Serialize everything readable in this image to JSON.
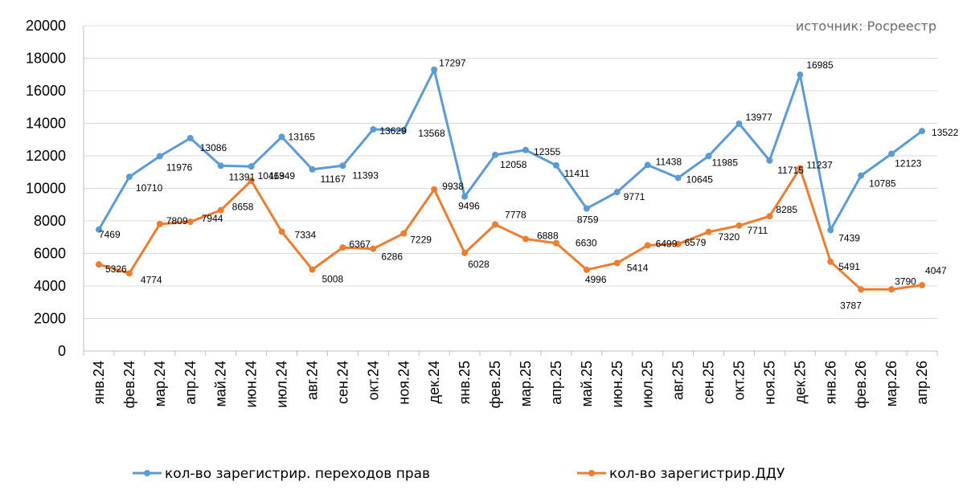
{
  "chart_data": {
    "type": "line",
    "source_label": "источник: Росреестр",
    "categories": [
      "янв.24",
      "фев.24",
      "мар.24",
      "апр.24",
      "май.24",
      "июн.24",
      "июл.24",
      "авг.24",
      "сен.24",
      "окт.24",
      "ноя.24",
      "дек.24",
      "янв.25",
      "фев.25",
      "мар.25",
      "апр.25",
      "май.25",
      "июн.25",
      "июл.25",
      "авг.25",
      "сен.25",
      "окт.25",
      "ноя.25",
      "дек.25",
      "янв.26",
      "фев.26",
      "мар.26",
      "апр.26"
    ],
    "ylim": [
      0,
      20000
    ],
    "yticks": [
      "0",
      "2000",
      "4000",
      "6000",
      "8000",
      "10000",
      "12000",
      "14000",
      "16000",
      "18000",
      "20000"
    ],
    "grid": "horizontal",
    "legend_position": "bottom",
    "series": [
      {
        "name": "кол-во зарегистрир. переходов прав",
        "color": "#5b9bd5",
        "values": [
          7469,
          10710,
          11976,
          13086,
          11391,
          11349,
          13165,
          11167,
          11393,
          13629,
          13568,
          17297,
          9496,
          12058,
          12355,
          11411,
          8759,
          9771,
          11438,
          10645,
          11985,
          13977,
          11715,
          16985,
          7439,
          10785,
          12123,
          13522
        ],
        "labels": [
          "7469",
          "10710",
          "11976",
          "13086",
          "11391",
          "11349",
          "13165",
          "11167",
          "11393",
          "13629",
          "13568",
          "17297",
          "9496",
          "12058",
          "12355",
          "11411",
          "8759",
          "9771",
          "11438",
          "10645",
          "11985",
          "13977",
          "11715",
          "16985",
          "7439",
          "10785",
          "12123",
          "13522"
        ]
      },
      {
        "name": "кол-во зарегистрир.ДДУ",
        "color": "#ed7d31",
        "values": [
          5326,
          4774,
          7809,
          7944,
          8658,
          10469,
          7334,
          5008,
          6367,
          6286,
          7229,
          9938,
          6028,
          7778,
          6888,
          6630,
          4996,
          5414,
          6499,
          6579,
          7320,
          7711,
          8285,
          11237,
          5491,
          3787,
          3790,
          4047
        ],
        "labels": [
          "5326",
          "4774",
          "7809",
          "7944",
          "8658",
          "10469",
          "7334",
          "5008",
          "6367",
          "6286",
          "7229",
          "9938",
          "6028",
          "7778",
          "6888",
          "6630",
          "4996",
          "5414",
          "6499",
          "6579",
          "7320",
          "7711",
          "8285",
          "11237",
          "5491",
          "3787",
          "3790",
          "4047"
        ]
      }
    ]
  }
}
